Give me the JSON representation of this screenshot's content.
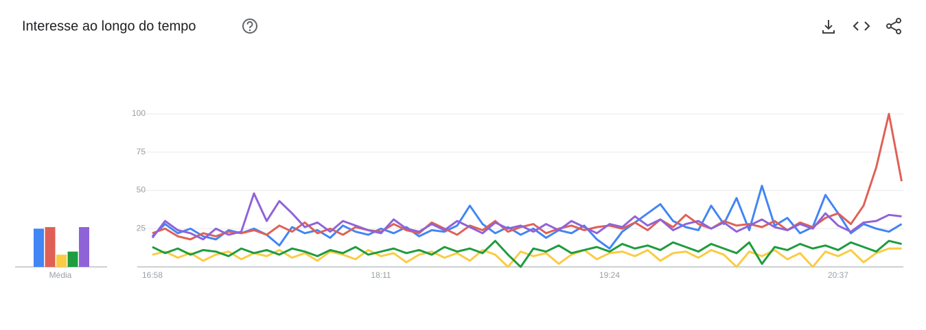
{
  "title": "Interesse ao longo do tempo",
  "chart_data": {
    "type": "line",
    "categories": [
      "16:58",
      null,
      null,
      null,
      null,
      null,
      null,
      null,
      null,
      null,
      null,
      null,
      null,
      null,
      null,
      null,
      null,
      null,
      "18:11",
      null,
      null,
      null,
      null,
      null,
      null,
      null,
      null,
      null,
      null,
      null,
      null,
      null,
      null,
      null,
      null,
      null,
      "19:24",
      null,
      null,
      null,
      null,
      null,
      null,
      null,
      null,
      null,
      null,
      null,
      null,
      null,
      null,
      null,
      null,
      null,
      "20:37",
      null,
      null,
      null,
      null,
      null
    ],
    "ylim": [
      0,
      100
    ],
    "yticks": [
      25,
      50,
      75,
      100
    ],
    "grid": true,
    "average_label": "Média",
    "series": [
      {
        "color": "#4285f4",
        "average": 25,
        "values": [
          20,
          28,
          22,
          25,
          20,
          18,
          24,
          22,
          25,
          21,
          14,
          26,
          22,
          24,
          19,
          27,
          23,
          21,
          25,
          22,
          26,
          20,
          24,
          23,
          27,
          40,
          28,
          22,
          26,
          21,
          25,
          19,
          24,
          22,
          27,
          18,
          12,
          23,
          29,
          35,
          41,
          30,
          26,
          24,
          40,
          28,
          45,
          24,
          53,
          27,
          32,
          22,
          26,
          47,
          35,
          22,
          28,
          25,
          23,
          28
        ]
      },
      {
        "color": "#e06055",
        "average": 26,
        "values": [
          22,
          25,
          20,
          18,
          22,
          20,
          23,
          22,
          24,
          21,
          27,
          23,
          29,
          22,
          25,
          21,
          26,
          24,
          23,
          28,
          24,
          22,
          29,
          25,
          21,
          27,
          24,
          30,
          23,
          26,
          28,
          22,
          25,
          27,
          24,
          26,
          27,
          25,
          29,
          24,
          31,
          26,
          34,
          28,
          25,
          30,
          27,
          28,
          26,
          30,
          24,
          29,
          26,
          32,
          35,
          28,
          40,
          65,
          100,
          56
        ]
      },
      {
        "color": "#fbcb43",
        "average": 8,
        "values": [
          8,
          10,
          6,
          9,
          4,
          8,
          10,
          5,
          9,
          7,
          11,
          6,
          9,
          4,
          10,
          8,
          5,
          11,
          7,
          9,
          3,
          8,
          10,
          6,
          9,
          4,
          11,
          8,
          0,
          10,
          7,
          9,
          2,
          8,
          11,
          5,
          9,
          10,
          7,
          11,
          4,
          9,
          10,
          6,
          11,
          8,
          0,
          10,
          7,
          11,
          5,
          9,
          0,
          10,
          7,
          11,
          3,
          9,
          12,
          12
        ]
      },
      {
        "color": "#1e9c3e",
        "average": 10,
        "values": [
          13,
          9,
          12,
          8,
          11,
          10,
          7,
          12,
          9,
          11,
          8,
          12,
          10,
          7,
          11,
          9,
          13,
          8,
          10,
          12,
          9,
          11,
          8,
          13,
          10,
          12,
          9,
          17,
          8,
          0,
          12,
          10,
          14,
          9,
          11,
          13,
          10,
          15,
          12,
          14,
          11,
          16,
          13,
          10,
          15,
          12,
          9,
          16,
          2,
          13,
          11,
          15,
          12,
          14,
          11,
          16,
          13,
          10,
          17,
          15
        ]
      },
      {
        "color": "#8f63d8",
        "average": 26,
        "values": [
          19,
          30,
          24,
          22,
          18,
          25,
          21,
          23,
          48,
          30,
          43,
          35,
          26,
          29,
          23,
          30,
          27,
          24,
          22,
          31,
          25,
          23,
          28,
          24,
          30,
          26,
          22,
          29,
          25,
          27,
          23,
          28,
          24,
          30,
          26,
          22,
          28,
          26,
          33,
          27,
          31,
          24,
          28,
          30,
          25,
          29,
          23,
          27,
          31,
          26,
          24,
          28,
          25,
          35,
          27,
          23,
          29,
          30,
          34,
          33
        ]
      }
    ]
  }
}
